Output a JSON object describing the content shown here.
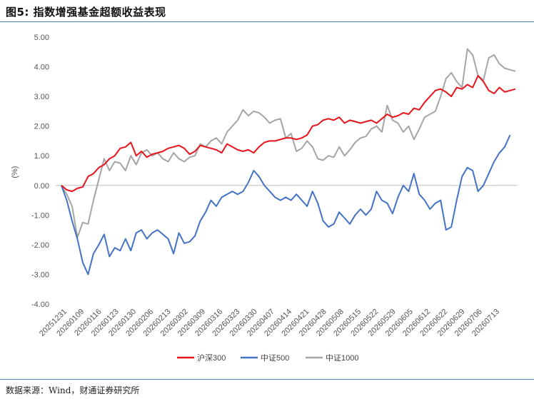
{
  "title": "图5: 指数增强基金超额收益表现",
  "source": "数据来源：Wind，财通证券研究所",
  "chart_data": {
    "type": "line",
    "ylabel": "(%)",
    "ylim": [
      -4.0,
      5.0
    ],
    "yticks": [
      "5.00",
      "4.00",
      "3.00",
      "2.00",
      "1.00",
      "0.00",
      "-1.00",
      "-2.00",
      "-3.00",
      "-4.00"
    ],
    "x_labels": [
      "20251231",
      "20260109",
      "20260116",
      "20260123",
      "20260130",
      "20260206",
      "20260213",
      "20260302",
      "20260309",
      "20260316",
      "20260323",
      "20260330",
      "20260407",
      "20260414",
      "20260421",
      "20260428",
      "20260508",
      "20260515",
      "20260522",
      "20260529",
      "20260605",
      "20260612",
      "20260622",
      "20260629",
      "20260706",
      "20260713"
    ],
    "legend_position": "bottom",
    "grid": false,
    "series": [
      {
        "name": "沪深300",
        "color": "#e8141b",
        "values": [
          0.0,
          -0.15,
          -0.2,
          -0.1,
          -0.05,
          0.3,
          0.4,
          0.6,
          0.7,
          0.9,
          1.0,
          1.25,
          1.3,
          1.45,
          1.0,
          1.15,
          0.95,
          1.05,
          1.1,
          1.15,
          1.25,
          1.3,
          1.35,
          1.25,
          1.05,
          1.15,
          1.35,
          1.3,
          1.25,
          1.2,
          1.1,
          1.4,
          1.3,
          1.2,
          1.15,
          1.2,
          1.1,
          1.3,
          1.45,
          1.5,
          1.5,
          1.55,
          1.6,
          1.6,
          1.55,
          1.6,
          1.7,
          2.0,
          2.05,
          2.2,
          2.25,
          2.2,
          2.3,
          2.1,
          2.2,
          2.15,
          2.1,
          2.15,
          2.2,
          2.1,
          2.25,
          2.4,
          2.3,
          2.35,
          2.45,
          2.4,
          2.6,
          2.55,
          2.8,
          3.0,
          3.2,
          3.25,
          3.15,
          3.0,
          3.3,
          3.25,
          3.4,
          3.3,
          3.7,
          3.5,
          3.2,
          3.1,
          3.3,
          3.15,
          3.2,
          3.25
        ]
      },
      {
        "name": "中证500",
        "color": "#4472c4",
        "values": [
          0.0,
          -0.5,
          -1.2,
          -1.8,
          -2.6,
          -3.0,
          -2.3,
          -2.0,
          -1.65,
          -2.4,
          -2.1,
          -2.2,
          -1.8,
          -2.2,
          -1.6,
          -1.5,
          -1.8,
          -1.6,
          -1.5,
          -1.65,
          -1.8,
          -2.3,
          -1.6,
          -1.95,
          -1.9,
          -1.7,
          -1.2,
          -0.9,
          -0.5,
          -0.7,
          -0.4,
          -0.3,
          -0.2,
          -0.3,
          -0.2,
          0.1,
          0.5,
          0.3,
          0.0,
          -0.2,
          -0.4,
          -0.5,
          -0.4,
          -0.5,
          -0.3,
          -0.5,
          -0.7,
          -0.2,
          -0.6,
          -1.2,
          -1.4,
          -1.3,
          -0.9,
          -1.1,
          -1.3,
          -1.0,
          -0.8,
          -1.0,
          -0.8,
          -0.2,
          -0.5,
          -0.6,
          -0.95,
          -0.4,
          0.0,
          -0.2,
          0.4,
          -0.3,
          -0.5,
          -0.8,
          -0.6,
          -0.5,
          -1.5,
          -1.4,
          -0.5,
          0.3,
          0.6,
          0.5,
          -0.2,
          0.0,
          0.4,
          0.8,
          1.1,
          1.3,
          1.7
        ]
      },
      {
        "name": "中证1000",
        "color": "#a5a5a5",
        "values": [
          0.0,
          -0.3,
          -0.7,
          -1.75,
          -1.25,
          -1.3,
          -0.5,
          0.2,
          0.9,
          0.5,
          0.8,
          0.75,
          0.5,
          1.0,
          0.7,
          1.1,
          1.2,
          1.0,
          1.1,
          0.9,
          0.8,
          1.1,
          0.9,
          0.8,
          0.95,
          1.0,
          1.4,
          1.3,
          1.5,
          1.6,
          1.4,
          1.8,
          2.0,
          2.2,
          2.55,
          2.35,
          2.5,
          2.45,
          2.3,
          2.1,
          2.2,
          2.25,
          1.6,
          1.75,
          1.15,
          1.25,
          1.5,
          1.3,
          0.9,
          0.85,
          1.0,
          0.95,
          1.3,
          1.0,
          1.2,
          1.45,
          1.6,
          1.65,
          1.9,
          2.0,
          1.8,
          2.7,
          2.2,
          2.1,
          1.8,
          2.0,
          1.55,
          1.9,
          2.3,
          2.4,
          2.5,
          3.0,
          3.6,
          3.8,
          3.5,
          3.3,
          4.6,
          4.4,
          3.7,
          3.55,
          4.3,
          4.4,
          4.1,
          3.95,
          3.9,
          3.85
        ]
      }
    ]
  }
}
